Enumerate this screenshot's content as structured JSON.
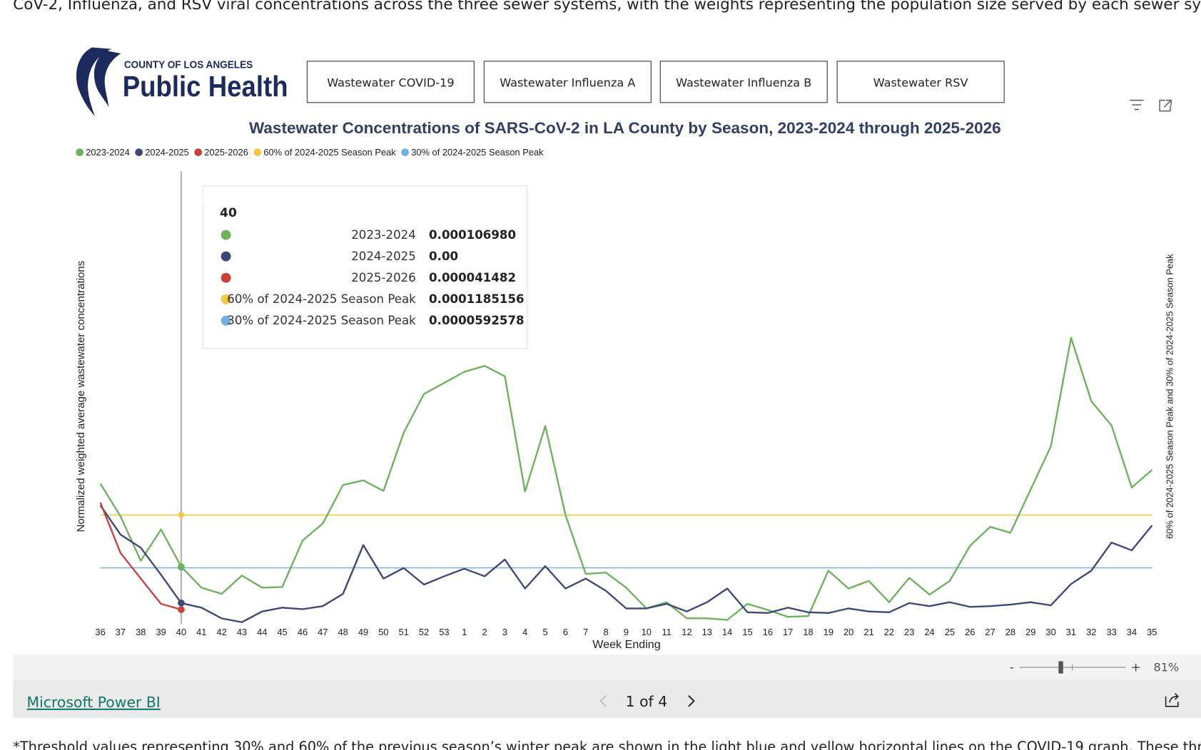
{
  "intro_text": "CoV-2, Influenza, and RSV viral concentrations across the three sewer systems, with the weights representing the population size served by each sewer system.",
  "logo": {
    "line1": "COUNTY OF LOS ANGELES",
    "line2": "Public Health"
  },
  "buttons": [
    "Wastewater COVID-19",
    "Wastewater Influenza A",
    "Wastewater Influenza B",
    "Wastewater RSV"
  ],
  "chart_data": {
    "type": "line",
    "title": "Wastewater Concentrations of SARS-CoV-2 in LA County by Season, 2023-2024 through 2025-2026",
    "x_label": "Week Ending",
    "y_label": "Normalized weighted average wastewater concentrations",
    "y2_label": "60% of 2024-2025 Season Peak and 30% of 2024-2025 Season Peak",
    "legend": "top-left",
    "categories": [
      "36",
      "37",
      "38",
      "39",
      "40",
      "41",
      "42",
      "43",
      "44",
      "45",
      "46",
      "47",
      "48",
      "49",
      "50",
      "51",
      "52",
      "53",
      "1",
      "2",
      "3",
      "4",
      "5",
      "6",
      "7",
      "8",
      "9",
      "10",
      "11",
      "12",
      "13",
      "14",
      "15",
      "16",
      "17",
      "18",
      "19",
      "20",
      "21",
      "22",
      "23",
      "24",
      "25",
      "26",
      "27",
      "28",
      "29",
      "30",
      "31",
      "32",
      "33",
      "34",
      "35"
    ],
    "ylim": [
      0,
      0.00071
    ],
    "y2lim": [
      -1.8e-05,
      0.000503
    ],
    "series": [
      {
        "name": "2023-2024",
        "color": "#6db25c",
        "values": [
          0.000234,
          0.000184,
          0.000116,
          0.000164,
          0.00010698,
          7.5e-05,
          6.55e-05,
          9.36e-05,
          7.5e-05,
          7.6e-05,
          0.000147,
          0.000173,
          0.000232,
          0.000239,
          0.000223,
          0.000312,
          0.000371,
          0.000388,
          0.000405,
          0.000414,
          0.000398,
          0.000222,
          0.000322,
          0.000186,
          9.6e-05,
          9.8e-05,
          7.5e-05,
          4.33e-05,
          5.27e-05,
          2.81e-05,
          2.81e-05,
          2.57e-05,
          5.03e-05,
          4.1e-05,
          3.04e-05,
          3.16e-05,
          0.000101,
          7.37e-05,
          8.54e-05,
          5.27e-05,
          9.01e-05,
          6.44e-05,
          8.54e-05,
          0.000139,
          0.000168,
          0.000159,
          0.000225,
          0.000291,
          0.000457,
          0.00036,
          0.000323,
          0.000228,
          0.000255
        ]
      },
      {
        "name": "2024-2025",
        "color": "#3e4878",
        "values": [
          0.000201,
          0.000156,
          0.000136,
          9.48e-05,
          5.15e-05,
          4.45e-05,
          2.81e-05,
          2.22e-05,
          3.86e-05,
          4.45e-05,
          4.21e-05,
          4.68e-05,
          6.55e-05,
          0.00014,
          8.89e-05,
          0.000105,
          7.96e-05,
          9.24e-05,
          0.000104,
          9.24e-05,
          0.000118,
          7.37e-05,
          0.000108,
          7.37e-05,
          8.89e-05,
          7.02e-05,
          4.33e-05,
          4.33e-05,
          5.03e-05,
          3.86e-05,
          5.27e-05,
          7.37e-05,
          3.74e-05,
          3.63e-05,
          4.45e-05,
          3.74e-05,
          3.63e-05,
          4.33e-05,
          3.86e-05,
          3.74e-05,
          5.15e-05,
          4.68e-05,
          5.27e-05,
          4.56e-05,
          4.68e-05,
          4.91e-05,
          5.27e-05,
          4.8e-05,
          8.07e-05,
          0.000101,
          0.000144,
          0.000132,
          0.00017
        ]
      },
      {
        "name": "2025-2026",
        "color": "#c8423c",
        "values": [
          0.000205,
          0.000128,
          8.89e-05,
          5.03e-05,
          4.1482e-05,
          null,
          null,
          null,
          null,
          null,
          null,
          null,
          null,
          null,
          null,
          null,
          null,
          null,
          null,
          null,
          null,
          null,
          null,
          null,
          null,
          null,
          null,
          null,
          null,
          null,
          null,
          null,
          null,
          null,
          null,
          null,
          null,
          null,
          null,
          null,
          null,
          null,
          null,
          null,
          null,
          null,
          null,
          null,
          null,
          null,
          null,
          null,
          null
        ]
      }
    ],
    "reference_lines": [
      {
        "name": "60% of 2024-2025 Season Peak",
        "color": "#f2c744",
        "value": 0.0001185156,
        "axis": "y2"
      },
      {
        "name": "30% of 2024-2025 Season Peak",
        "color": "#72b0de",
        "value": 5.92578e-05,
        "axis": "y2"
      }
    ]
  },
  "tooltip": {
    "category": "40",
    "values": [
      "0.000106980",
      "0.00",
      "0.000041482",
      "0.0001185156",
      "0.0000592578"
    ]
  },
  "zoom": {
    "minus": "-",
    "plus": "+",
    "level": "81%"
  },
  "footer": {
    "brand": "Microsoft Power BI",
    "page": "1 of 4"
  },
  "outro_text": "*Threshold values representing 30% and 60% of the previous season’s winter peak are shown in the light blue and yellow horizontal lines on the COVID-19 graph. These thresholds are used to help determine"
}
